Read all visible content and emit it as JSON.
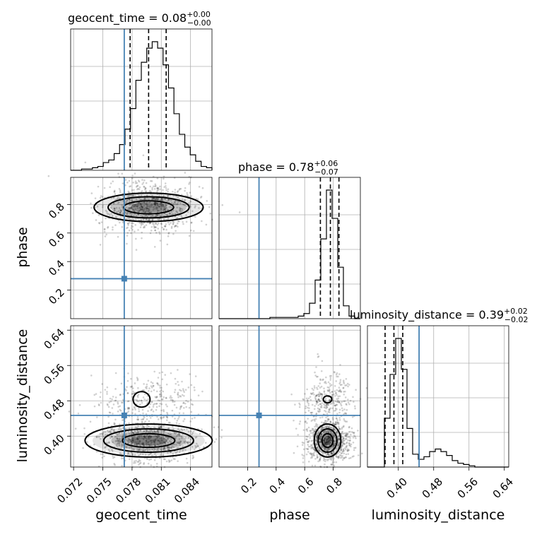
{
  "chart_data": {
    "type": "corner",
    "parameters": [
      "geocent_time",
      "phase",
      "luminosity_distance"
    ],
    "colors": {
      "truth": "#4682b4",
      "hist": "#000000",
      "grid": "#b0b0b0"
    },
    "titles": [
      {
        "param": "geocent_time",
        "text": "geocent_time = 0.08",
        "plus": "+0.00",
        "minus": "−0.00"
      },
      {
        "param": "phase",
        "text": "phase = 0.78",
        "plus": "+0.06",
        "minus": "−0.07"
      },
      {
        "param": "luminosity_distance",
        "text": "luminosity_distance = 0.39",
        "plus": "+0.02",
        "minus": "−0.02"
      }
    ],
    "truths": {
      "geocent_time": 0.0772,
      "phase": 0.28,
      "luminosity_distance": 0.447
    },
    "ranges": {
      "geocent_time": [
        0.0717,
        0.0862
      ],
      "phase": [
        0.0,
        0.99
      ],
      "luminosity_distance": [
        0.33,
        0.65
      ]
    },
    "ticks": {
      "geocent_time": [
        "0.072",
        "0.075",
        "0.078",
        "0.081",
        "0.084"
      ],
      "phase": [
        "0.2",
        "0.4",
        "0.6",
        "0.8"
      ],
      "luminosity_distance": [
        "0.40",
        "0.48",
        "0.56",
        "0.64"
      ]
    },
    "quantiles": {
      "geocent_time": [
        0.0778,
        0.0797,
        0.0815
      ],
      "phase": [
        0.71,
        0.78,
        0.84
      ],
      "luminosity_distance": [
        0.37,
        0.39,
        0.41
      ]
    },
    "histograms": {
      "geocent_time": [
        0,
        0,
        1,
        1,
        2,
        3,
        6,
        8,
        13,
        20,
        32,
        48,
        70,
        84,
        95,
        100,
        95,
        82,
        64,
        44,
        28,
        18,
        12,
        7,
        3,
        2
      ],
      "phase": [
        0,
        0,
        0,
        0,
        0,
        0,
        0,
        0,
        0,
        1,
        1,
        1,
        1,
        1,
        2,
        4,
        12,
        30,
        62,
        100,
        78,
        40,
        10,
        2,
        0
      ],
      "luminosity_distance": [
        0,
        0,
        0,
        38,
        72,
        100,
        76,
        30,
        10,
        6,
        8,
        12,
        14,
        12,
        9,
        5,
        3,
        2,
        1,
        0,
        0,
        0,
        0,
        0,
        0
      ]
    },
    "xlabels": [
      "geocent_time",
      "phase",
      "luminosity_distance"
    ],
    "ylabels": [
      "",
      "phase",
      "luminosity_distance"
    ],
    "grid": true
  }
}
